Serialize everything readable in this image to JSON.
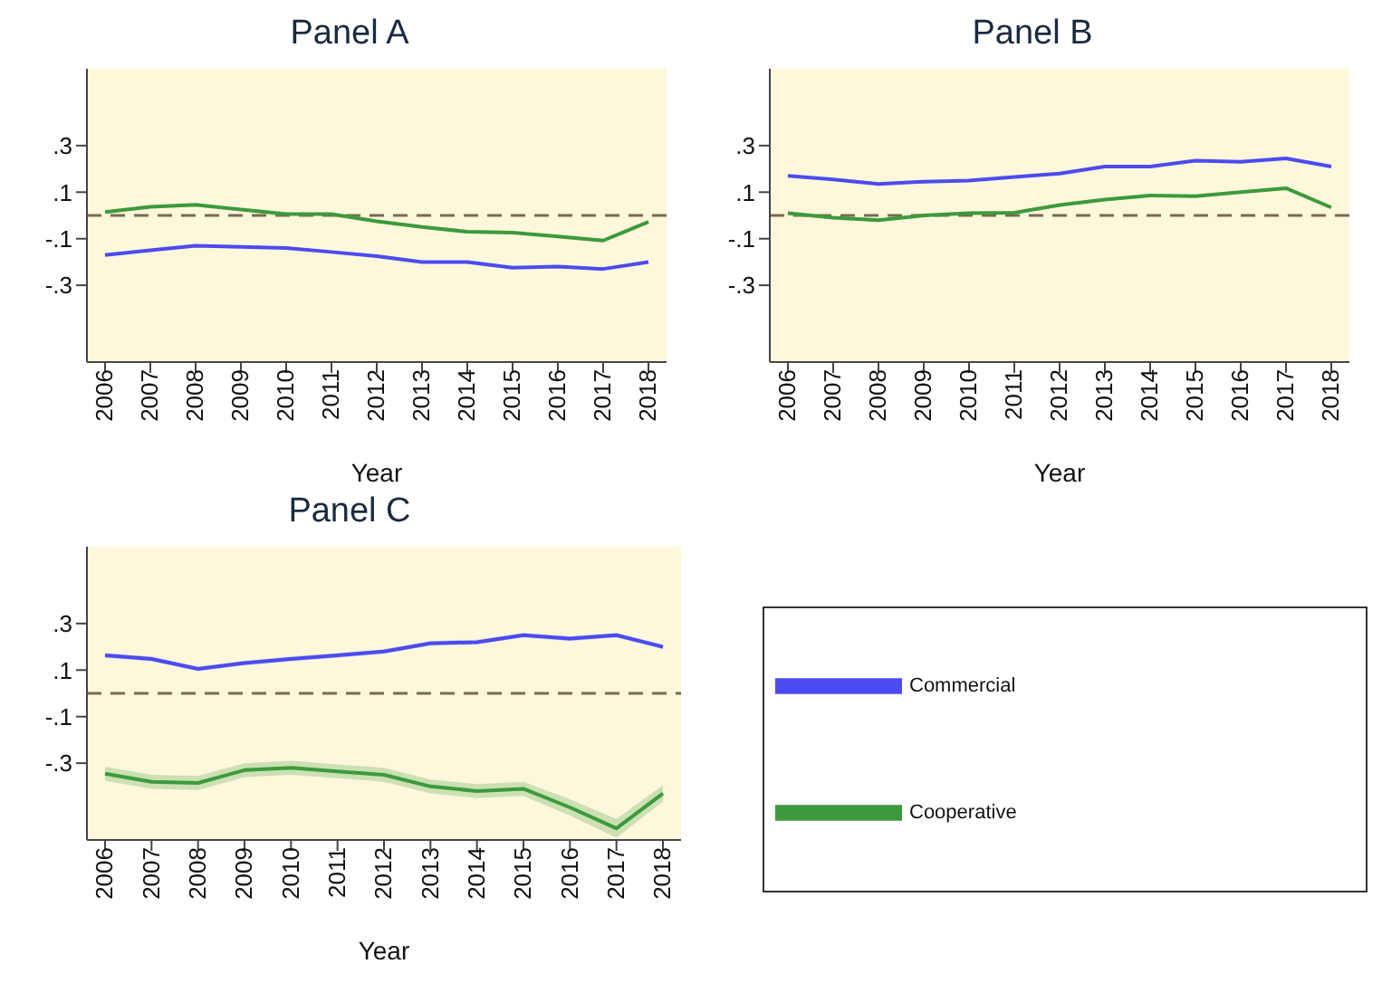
{
  "chart_data": [
    {
      "type": "line",
      "title": "Panel A",
      "xlabel": "Year",
      "categories": [
        "2006",
        "2007",
        "2008",
        "2009",
        "2010",
        "2011",
        "2012",
        "2013",
        "2014",
        "2015",
        "2016",
        "2017",
        "2018"
      ],
      "series": [
        {
          "color": "#3c9a3c",
          "values": [
            0.015,
            0.037,
            0.046,
            0.025,
            0.006,
            0.006,
            -0.025,
            -0.05,
            -0.07,
            -0.074,
            -0.09,
            -0.108,
            -0.028
          ]
        },
        {
          "color": "#4b4bf0",
          "values": [
            -0.17,
            -0.15,
            -0.13,
            -0.135,
            -0.14,
            -0.157,
            -0.175,
            -0.2,
            -0.2,
            -0.225,
            -0.22,
            -0.23,
            -0.2
          ]
        }
      ],
      "ylim": [
        -0.63,
        0.63
      ],
      "yticks": [
        {
          "value": 0.3,
          "label": ".3"
        },
        {
          "value": 0.1,
          "label": ".1"
        },
        {
          "value": -0.1,
          "label": "-.1"
        },
        {
          "value": -0.3,
          "label": "-.3"
        }
      ],
      "ref_lines": [
        {
          "axis": "y",
          "value": 0,
          "color": "#7a6a50",
          "line_style": "dashed"
        }
      ],
      "line_style": "solid",
      "marker": "none",
      "grid": false,
      "legend": false
    },
    {
      "type": "line",
      "title": "Panel B",
      "xlabel": "Year",
      "categories": [
        "2006",
        "2007",
        "2008",
        "2009",
        "2010",
        "2011",
        "2012",
        "2013",
        "2014",
        "2015",
        "2016",
        "2017",
        "2018"
      ],
      "series": [
        {
          "color": "#3c9a3c",
          "values": [
            0.01,
            -0.01,
            -0.02,
            0,
            0.01,
            0.012,
            0.045,
            0.068,
            0.086,
            0.083,
            0.1,
            0.117,
            0.034
          ]
        },
        {
          "color": "#4b4bf0",
          "values": [
            0.17,
            0.155,
            0.135,
            0.145,
            0.15,
            0.165,
            0.18,
            0.21,
            0.21,
            0.235,
            0.23,
            0.245,
            0.21
          ]
        }
      ],
      "ylim": [
        -0.63,
        0.63
      ],
      "yticks": [
        {
          "value": 0.3,
          "label": ".3"
        },
        {
          "value": 0.1,
          "label": ".1"
        },
        {
          "value": -0.1,
          "label": "-.1"
        },
        {
          "value": -0.3,
          "label": "-.3"
        }
      ],
      "ref_lines": [
        {
          "axis": "y",
          "value": 0,
          "color": "#7a6a50",
          "line_style": "dashed"
        }
      ],
      "line_style": "solid",
      "marker": "none",
      "grid": false,
      "legend": false
    },
    {
      "type": "line",
      "title": "Panel C",
      "xlabel": "Year",
      "categories": [
        "2006",
        "2007",
        "2008",
        "2009",
        "2010",
        "2011",
        "2012",
        "2013",
        "2014",
        "2015",
        "2016",
        "2017",
        "2018"
      ],
      "series": [
        {
          "name": "Cooperative",
          "color": "#3c9a3c",
          "values": [
            -0.345,
            -0.38,
            -0.385,
            -0.33,
            -0.32,
            -0.335,
            -0.35,
            -0.4,
            -0.42,
            -0.41,
            -0.49,
            -0.58,
            -0.43
          ],
          "lower": [
            -0.375,
            -0.41,
            -0.415,
            -0.36,
            -0.35,
            -0.365,
            -0.38,
            -0.43,
            -0.45,
            -0.44,
            -0.525,
            -0.62,
            -0.465
          ],
          "upper": [
            -0.315,
            -0.35,
            -0.355,
            -0.3,
            -0.29,
            -0.305,
            -0.32,
            -0.37,
            -0.39,
            -0.38,
            -0.455,
            -0.54,
            -0.395
          ]
        },
        {
          "name": "Commercial",
          "color": "#4b4bf0",
          "values": [
            0.163,
            0.148,
            0.105,
            0.13,
            0.148,
            0.163,
            0.18,
            0.215,
            0.22,
            0.25,
            0.235,
            0.25,
            0.2
          ],
          "lower": [
            0.153,
            0.138,
            0.095,
            0.12,
            0.138,
            0.153,
            0.17,
            0.205,
            0.21,
            0.24,
            0.225,
            0.24,
            0.19
          ],
          "upper": [
            0.173,
            0.158,
            0.115,
            0.14,
            0.158,
            0.173,
            0.19,
            0.225,
            0.23,
            0.26,
            0.245,
            0.26,
            0.21
          ]
        }
      ],
      "ylim": [
        -0.63,
        0.63
      ],
      "yticks": [
        {
          "value": 0.3,
          "label": ".3"
        },
        {
          "value": 0.1,
          "label": ".1"
        },
        {
          "value": -0.1,
          "label": "-.1"
        },
        {
          "value": -0.3,
          "label": "-.3"
        }
      ],
      "ref_lines": [
        {
          "axis": "y",
          "value": 0,
          "color": "#7a6a50",
          "line_style": "dashed"
        }
      ],
      "line_style": "solid",
      "marker": "none",
      "grid": false,
      "legend": "right"
    }
  ]
}
